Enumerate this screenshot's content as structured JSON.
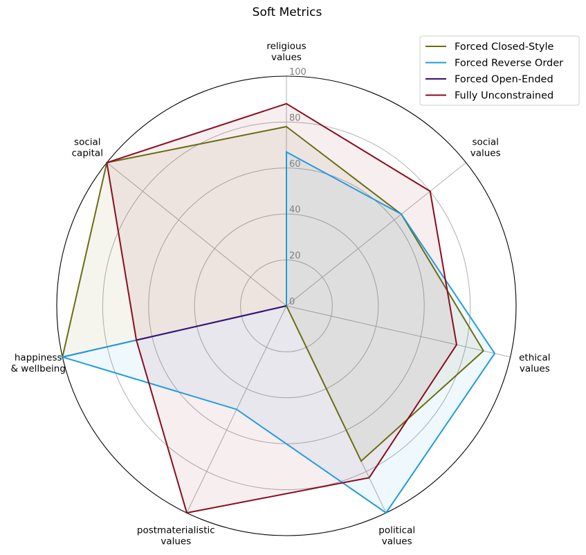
{
  "chart_data": {
    "type": "radar",
    "title": "Soft Metrics",
    "axes": [
      [
        "religious",
        "values"
      ],
      [
        "social",
        "values"
      ],
      [
        "ethical",
        "values"
      ],
      [
        "political",
        "values"
      ],
      [
        "postmaterialistic",
        "values"
      ],
      [
        "happiness",
        "& wellbeing"
      ],
      [
        "social",
        "capital"
      ]
    ],
    "rlim": [
      0,
      100
    ],
    "rticks": [
      0,
      20,
      40,
      60,
      80,
      100
    ],
    "grid": true,
    "legend_position": "top-right",
    "series": [
      {
        "name": "Forced Closed-Style",
        "color": "#6b6b10",
        "values": [
          78,
          64,
          88,
          75,
          0,
          100,
          100
        ]
      },
      {
        "name": "Forced Reverse Order",
        "color": "#1f9be0",
        "values": [
          67,
          64,
          93,
          100,
          50,
          100,
          0
        ]
      },
      {
        "name": "Forced Open-Ended",
        "color": "#3a0f7a",
        "values": [
          0,
          0,
          0,
          0,
          0,
          67,
          0
        ]
      },
      {
        "name": "Fully Unconstrained",
        "color": "#8b0a1e",
        "values": [
          88,
          80,
          76,
          83,
          100,
          67,
          100
        ]
      }
    ]
  }
}
